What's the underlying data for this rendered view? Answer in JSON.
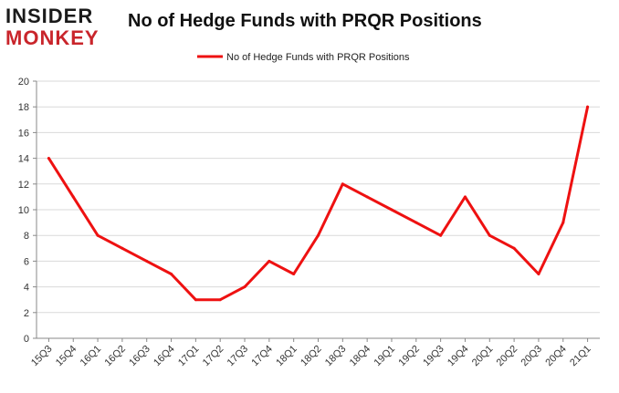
{
  "logo": {
    "line1": "INSIDER",
    "line2": "MONKEY"
  },
  "chart_data": {
    "type": "line",
    "title": "No of Hedge Funds with PRQR Positions",
    "categories": [
      "15Q3",
      "15Q4",
      "16Q1",
      "16Q2",
      "16Q3",
      "16Q4",
      "17Q1",
      "17Q2",
      "17Q3",
      "17Q4",
      "18Q1",
      "18Q2",
      "18Q3",
      "18Q4",
      "19Q1",
      "19Q2",
      "19Q3",
      "19Q4",
      "20Q1",
      "20Q2",
      "20Q3",
      "20Q4",
      "21Q1"
    ],
    "series": [
      {
        "name": "No of Hedge Funds with PRQR Positions",
        "values": [
          14,
          11,
          8,
          7,
          6,
          5,
          3,
          3,
          4,
          6,
          5,
          8,
          12,
          11,
          10,
          9,
          8,
          11,
          8,
          7,
          5,
          9,
          18
        ],
        "color": "#ee1111"
      }
    ],
    "yticks": [
      0,
      2,
      4,
      6,
      8,
      10,
      12,
      14,
      16,
      18,
      20
    ],
    "ylim": [
      0,
      20
    ],
    "grid": true,
    "legend": "top-center",
    "xlabel": "",
    "ylabel": ""
  }
}
